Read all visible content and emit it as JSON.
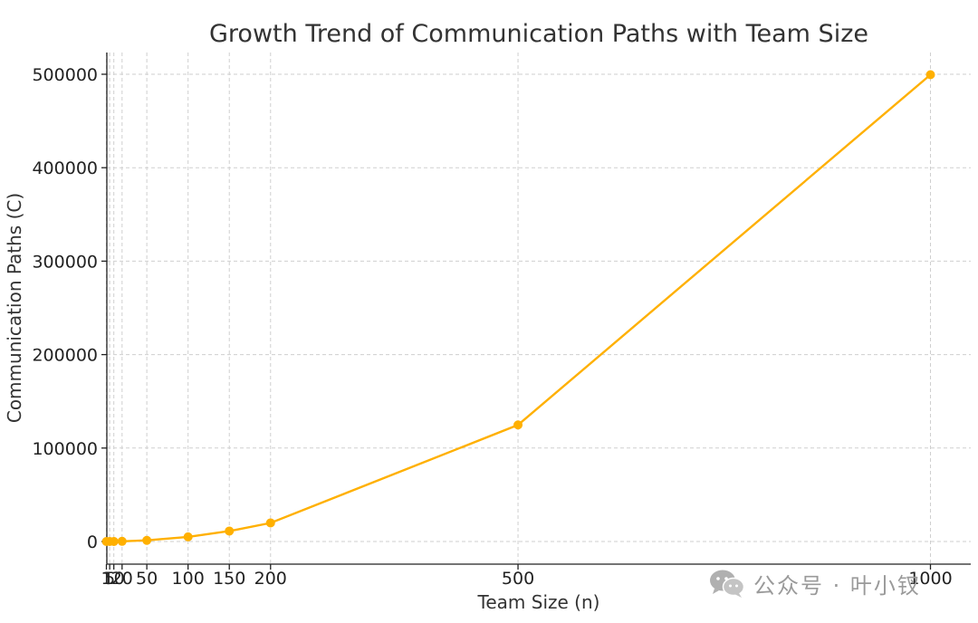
{
  "chart_data": {
    "type": "line",
    "title": "Growth Trend of Communication Paths with Team Size",
    "xlabel": "Team Size (n)",
    "ylabel": "Communication Paths (C)",
    "x": [
      1,
      5,
      10,
      20,
      50,
      100,
      150,
      200,
      500,
      1000
    ],
    "xtick_labels": [
      "1",
      "5",
      "10",
      "20",
      "50",
      "100",
      "150",
      "200",
      "500",
      "1000"
    ],
    "yticks": [
      0,
      100000,
      200000,
      300000,
      400000,
      500000
    ],
    "ytick_labels": [
      "0",
      "100000",
      "200000",
      "300000",
      "400000",
      "500000"
    ],
    "series": [
      {
        "values": [
          0,
          10,
          45,
          190,
          1225,
          4950,
          11175,
          19900,
          124750,
          499500
        ],
        "color": "#ffb000"
      }
    ],
    "grid": true,
    "legend": "none"
  },
  "watermark": {
    "icon": "wechat-icon",
    "text": "公众号 · 叶小钗"
  }
}
